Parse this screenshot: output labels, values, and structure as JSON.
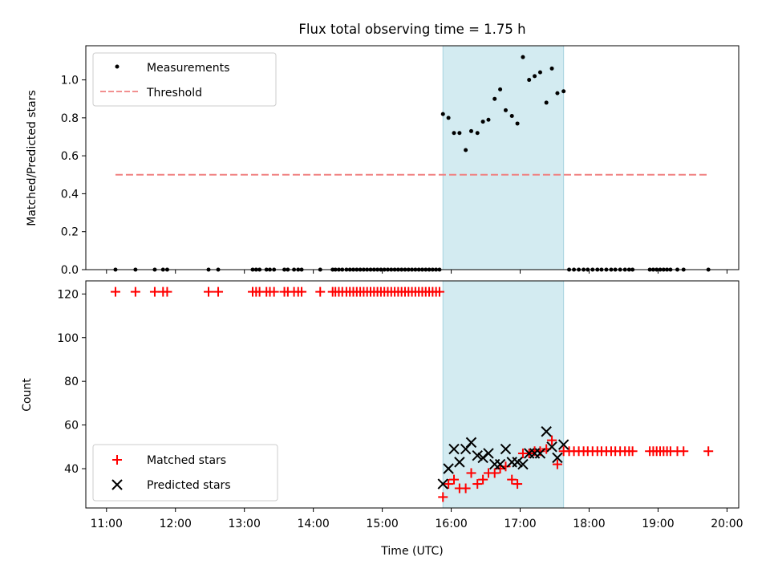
{
  "chart_data": [
    {
      "type": "scatter",
      "title": "Flux total observing time = 1.75 h",
      "ylabel": "Matched/Predicted stars",
      "ylim": [
        0,
        1.18
      ],
      "yticks": [
        0,
        0.2,
        0.4,
        0.6,
        0.8,
        1.0
      ],
      "ytick_labels": [
        "0.0",
        "0.2",
        "0.4",
        "0.6",
        "0.8",
        "1.0"
      ],
      "grid": false,
      "legend_placement": "upper-left",
      "shaded_interval": [
        15.88,
        17.63
      ],
      "shade_color": "#d3ebf1",
      "series": [
        {
          "name": "Measurements",
          "marker": "dot",
          "color": "#000000",
          "x": [
            11.13,
            11.42,
            11.7,
            11.82,
            11.88,
            12.48,
            12.62,
            13.12,
            13.17,
            13.22,
            13.32,
            13.37,
            13.43,
            13.58,
            13.63,
            13.72,
            13.78,
            13.83,
            14.1,
            14.28,
            14.32,
            14.37,
            14.42,
            14.48,
            14.53,
            14.58,
            14.63,
            14.68,
            14.73,
            14.78,
            14.83,
            14.88,
            14.93,
            14.98,
            15.03,
            15.08,
            15.13,
            15.18,
            15.23,
            15.28,
            15.33,
            15.38,
            15.43,
            15.48,
            15.53,
            15.58,
            15.63,
            15.68,
            15.73,
            15.78,
            15.83,
            15.88,
            15.96,
            16.04,
            16.12,
            16.21,
            16.29,
            16.38,
            16.46,
            16.54,
            16.63,
            16.71,
            16.79,
            16.88,
            16.96,
            17.04,
            17.13,
            17.21,
            17.29,
            17.38,
            17.46,
            17.54,
            17.63,
            17.71,
            17.78,
            17.85,
            17.92,
            17.98,
            18.05,
            18.12,
            18.18,
            18.25,
            18.32,
            18.38,
            18.45,
            18.52,
            18.58,
            18.63,
            18.88,
            18.93,
            18.98,
            19.03,
            19.08,
            19.13,
            19.18,
            19.28,
            19.37,
            19.73
          ],
          "y": [
            0,
            0,
            0,
            0,
            0,
            0,
            0,
            0,
            0,
            0,
            0,
            0,
            0,
            0,
            0,
            0,
            0,
            0,
            0,
            0,
            0,
            0,
            0,
            0,
            0,
            0,
            0,
            0,
            0,
            0,
            0,
            0,
            0,
            0,
            0,
            0,
            0,
            0,
            0,
            0,
            0,
            0,
            0,
            0,
            0,
            0,
            0,
            0,
            0,
            0,
            0,
            0.82,
            0.8,
            0.72,
            0.72,
            0.63,
            0.73,
            0.72,
            0.78,
            0.79,
            0.9,
            0.95,
            0.84,
            0.81,
            0.77,
            1.12,
            1.0,
            1.02,
            1.04,
            0.88,
            1.06,
            0.93,
            0.94,
            0,
            0,
            0,
            0,
            0,
            0,
            0,
            0,
            0,
            0,
            0,
            0,
            0,
            0,
            0,
            0,
            0,
            0,
            0,
            0,
            0,
            0,
            0,
            0,
            0
          ]
        },
        {
          "name": "Threshold",
          "marker": "dashed-line",
          "color": "#f08080",
          "x": [
            11.13,
            19.73
          ],
          "y": [
            0.5,
            0.5
          ]
        }
      ]
    },
    {
      "type": "scatter",
      "xlabel": "Time (UTC)",
      "ylabel": "Count",
      "xlim": [
        10.7,
        20.17
      ],
      "ylim": [
        22,
        126
      ],
      "xticks": [
        11,
        12,
        13,
        14,
        15,
        16,
        17,
        18,
        19,
        20
      ],
      "xtick_labels": [
        "11:00",
        "12:00",
        "13:00",
        "14:00",
        "15:00",
        "16:00",
        "17:00",
        "18:00",
        "19:00",
        "20:00"
      ],
      "yticks": [
        40,
        60,
        80,
        100,
        120
      ],
      "ytick_labels": [
        "40",
        "60",
        "80",
        "100",
        "120"
      ],
      "grid": false,
      "legend_placement": "lower-left",
      "shaded_interval": [
        15.88,
        17.63
      ],
      "shade_color": "#d3ebf1",
      "series": [
        {
          "name": "Matched stars",
          "marker": "plus",
          "color": "#ff0000",
          "x": [
            11.13,
            11.42,
            11.7,
            11.82,
            11.88,
            12.48,
            12.62,
            13.12,
            13.17,
            13.22,
            13.32,
            13.37,
            13.43,
            13.58,
            13.63,
            13.72,
            13.78,
            13.83,
            14.1,
            14.28,
            14.32,
            14.37,
            14.42,
            14.48,
            14.53,
            14.58,
            14.63,
            14.68,
            14.73,
            14.78,
            14.83,
            14.88,
            14.93,
            14.98,
            15.03,
            15.08,
            15.13,
            15.18,
            15.23,
            15.28,
            15.33,
            15.38,
            15.43,
            15.48,
            15.53,
            15.58,
            15.63,
            15.68,
            15.73,
            15.78,
            15.83,
            15.88,
            15.96,
            16.04,
            16.12,
            16.21,
            16.29,
            16.38,
            16.46,
            16.54,
            16.63,
            16.71,
            16.79,
            16.88,
            16.96,
            17.04,
            17.13,
            17.21,
            17.29,
            17.38,
            17.46,
            17.54,
            17.63,
            17.71,
            17.78,
            17.85,
            17.92,
            17.98,
            18.05,
            18.12,
            18.18,
            18.25,
            18.32,
            18.38,
            18.45,
            18.52,
            18.58,
            18.63,
            18.88,
            18.93,
            18.98,
            19.03,
            19.08,
            19.13,
            19.18,
            19.28,
            19.37,
            19.73
          ],
          "y": [
            121,
            121,
            121,
            121,
            121,
            121,
            121,
            121,
            121,
            121,
            121,
            121,
            121,
            121,
            121,
            121,
            121,
            121,
            121,
            121,
            121,
            121,
            121,
            121,
            121,
            121,
            121,
            121,
            121,
            121,
            121,
            121,
            121,
            121,
            121,
            121,
            121,
            121,
            121,
            121,
            121,
            121,
            121,
            121,
            121,
            121,
            121,
            121,
            121,
            121,
            121,
            27,
            33,
            35,
            31,
            31,
            38,
            33,
            35,
            38,
            38,
            40,
            41,
            35,
            33,
            47,
            47,
            48,
            48,
            49,
            53,
            42,
            48,
            48,
            48,
            48,
            48,
            48,
            48,
            48,
            48,
            48,
            48,
            48,
            48,
            48,
            48,
            48,
            48,
            48,
            48,
            48,
            48,
            48,
            48,
            48,
            48,
            48
          ]
        },
        {
          "name": "Predicted stars",
          "marker": "x",
          "color": "#000000",
          "x": [
            15.88,
            15.96,
            16.04,
            16.12,
            16.21,
            16.29,
            16.38,
            16.46,
            16.54,
            16.63,
            16.71,
            16.79,
            16.88,
            16.96,
            17.04,
            17.13,
            17.21,
            17.29,
            17.38,
            17.46,
            17.54,
            17.63
          ],
          "y": [
            33,
            40,
            49,
            43,
            49,
            52,
            46,
            45,
            47,
            42,
            42,
            49,
            43,
            43,
            42,
            47,
            47,
            47,
            57,
            50,
            45,
            51
          ]
        }
      ]
    }
  ]
}
